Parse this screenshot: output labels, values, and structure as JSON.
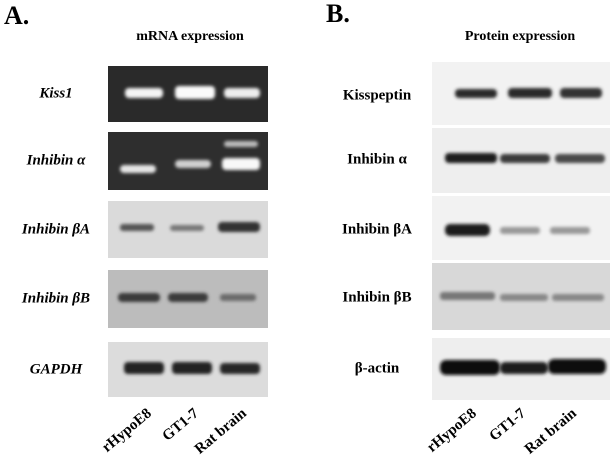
{
  "panels": [
    {
      "label": "A.",
      "title": "mRNA expression",
      "rows": [
        "Kiss1",
        "Inhibin α",
        "Inhibin βA",
        "Inhibin βB",
        "GAPDH"
      ],
      "lanes": [
        "rHypoE8",
        "GT1-7",
        "Rat brain"
      ]
    },
    {
      "label": "B.",
      "title": "Protein expression",
      "rows": [
        "Kisspeptin",
        "Inhibin α",
        "Inhibin βA",
        "Inhibin βB",
        "β-actin"
      ],
      "lanes": [
        "rHypoE8",
        "GT1-7",
        "Rat brain"
      ]
    }
  ]
}
